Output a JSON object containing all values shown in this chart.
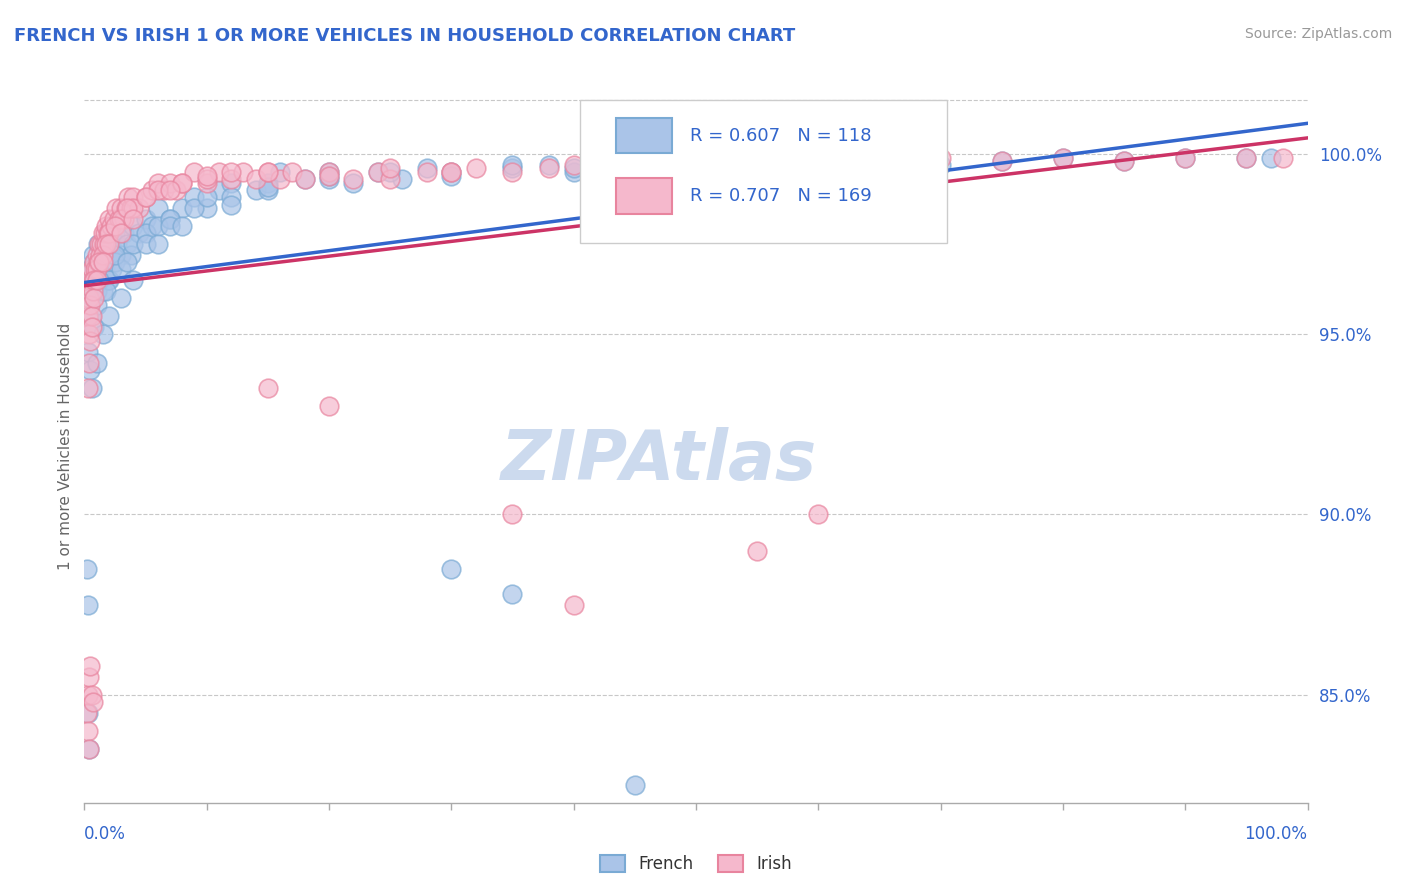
{
  "title": "FRENCH VS IRISH 1 OR MORE VEHICLES IN HOUSEHOLD CORRELATION CHART",
  "source_text": "Source: ZipAtlas.com",
  "ylabel": "1 or more Vehicles in Household",
  "ytick_values": [
    85.0,
    90.0,
    95.0,
    100.0
  ],
  "xmin": 0.0,
  "xmax": 100.0,
  "ymin": 82.0,
  "ymax": 101.8,
  "french_R": 0.607,
  "french_N": 118,
  "irish_R": 0.707,
  "irish_N": 169,
  "french_color": "#aac4e8",
  "french_edge": "#7aaad4",
  "irish_color": "#f5b8cc",
  "irish_edge": "#e8849e",
  "french_line_color": "#3366cc",
  "irish_line_color": "#cc3366",
  "title_color": "#3366cc",
  "ytick_color": "#3366cc",
  "watermark_color": "#ccdaee",
  "background_color": "#ffffff",
  "french_points": [
    [
      0.5,
      96.8
    ],
    [
      0.7,
      97.2
    ],
    [
      0.8,
      97.0
    ],
    [
      0.9,
      96.5
    ],
    [
      1.0,
      96.2
    ],
    [
      1.1,
      97.5
    ],
    [
      1.2,
      96.8
    ],
    [
      1.3,
      97.0
    ],
    [
      1.4,
      96.5
    ],
    [
      1.5,
      97.2
    ],
    [
      1.6,
      97.0
    ],
    [
      1.7,
      96.8
    ],
    [
      1.8,
      97.5
    ],
    [
      1.9,
      96.5
    ],
    [
      2.0,
      97.8
    ],
    [
      2.1,
      97.2
    ],
    [
      2.2,
      97.5
    ],
    [
      2.3,
      96.8
    ],
    [
      2.5,
      97.8
    ],
    [
      2.7,
      97.5
    ],
    [
      3.0,
      97.2
    ],
    [
      3.2,
      97.8
    ],
    [
      3.5,
      97.5
    ],
    [
      3.8,
      97.2
    ],
    [
      4.0,
      98.0
    ],
    [
      4.5,
      97.8
    ],
    [
      5.0,
      98.2
    ],
    [
      5.5,
      98.0
    ],
    [
      6.0,
      98.5
    ],
    [
      7.0,
      98.2
    ],
    [
      8.0,
      98.5
    ],
    [
      9.0,
      98.8
    ],
    [
      10.0,
      98.5
    ],
    [
      11.0,
      99.0
    ],
    [
      12.0,
      99.2
    ],
    [
      14.0,
      99.0
    ],
    [
      15.0,
      99.2
    ],
    [
      16.0,
      99.5
    ],
    [
      18.0,
      99.3
    ],
    [
      20.0,
      99.5
    ],
    [
      22.0,
      99.2
    ],
    [
      24.0,
      99.5
    ],
    [
      26.0,
      99.3
    ],
    [
      28.0,
      99.6
    ],
    [
      30.0,
      99.5
    ],
    [
      35.0,
      99.6
    ],
    [
      38.0,
      99.7
    ],
    [
      40.0,
      99.5
    ],
    [
      42.0,
      99.8
    ],
    [
      45.0,
      99.6
    ],
    [
      48.0,
      99.7
    ],
    [
      50.0,
      99.8
    ],
    [
      55.0,
      99.7
    ],
    [
      60.0,
      99.8
    ],
    [
      65.0,
      99.8
    ],
    [
      70.0,
      99.7
    ],
    [
      75.0,
      99.8
    ],
    [
      80.0,
      99.9
    ],
    [
      85.0,
      99.8
    ],
    [
      90.0,
      99.9
    ],
    [
      95.0,
      99.9
    ],
    [
      97.0,
      99.9
    ],
    [
      0.3,
      94.5
    ],
    [
      0.4,
      95.5
    ],
    [
      0.6,
      96.0
    ],
    [
      1.0,
      95.8
    ],
    [
      1.5,
      96.2
    ],
    [
      2.0,
      96.5
    ],
    [
      2.5,
      97.0
    ],
    [
      3.0,
      96.8
    ],
    [
      4.0,
      97.5
    ],
    [
      5.0,
      97.8
    ],
    [
      6.0,
      98.0
    ],
    [
      7.0,
      98.2
    ],
    [
      9.0,
      98.5
    ],
    [
      12.0,
      98.8
    ],
    [
      15.0,
      99.0
    ],
    [
      20.0,
      99.3
    ],
    [
      25.0,
      99.5
    ],
    [
      30.0,
      99.4
    ],
    [
      35.0,
      99.7
    ],
    [
      40.0,
      99.6
    ],
    [
      0.8,
      95.2
    ],
    [
      1.2,
      96.5
    ],
    [
      1.8,
      96.2
    ],
    [
      2.5,
      97.2
    ],
    [
      3.5,
      97.0
    ],
    [
      5.0,
      97.5
    ],
    [
      7.0,
      98.0
    ],
    [
      10.0,
      98.8
    ],
    [
      15.0,
      99.1
    ],
    [
      20.0,
      99.4
    ],
    [
      0.5,
      94.0
    ],
    [
      0.6,
      93.5
    ],
    [
      1.0,
      94.2
    ],
    [
      1.5,
      95.0
    ],
    [
      2.0,
      95.5
    ],
    [
      3.0,
      96.0
    ],
    [
      4.0,
      96.5
    ],
    [
      6.0,
      97.5
    ],
    [
      8.0,
      98.0
    ],
    [
      12.0,
      98.6
    ],
    [
      0.2,
      88.5
    ],
    [
      0.3,
      87.5
    ],
    [
      0.3,
      84.5
    ],
    [
      0.4,
      83.5
    ],
    [
      30.0,
      88.5
    ],
    [
      35.0,
      87.8
    ],
    [
      45.0,
      82.5
    ]
  ],
  "irish_points": [
    [
      0.3,
      95.5
    ],
    [
      0.4,
      96.0
    ],
    [
      0.5,
      96.5
    ],
    [
      0.6,
      96.8
    ],
    [
      0.7,
      96.5
    ],
    [
      0.8,
      97.0
    ],
    [
      0.9,
      96.8
    ],
    [
      1.0,
      97.2
    ],
    [
      1.1,
      97.0
    ],
    [
      1.2,
      97.5
    ],
    [
      1.3,
      97.2
    ],
    [
      1.4,
      97.5
    ],
    [
      1.5,
      97.8
    ],
    [
      1.6,
      97.5
    ],
    [
      1.7,
      97.8
    ],
    [
      1.8,
      98.0
    ],
    [
      1.9,
      97.8
    ],
    [
      2.0,
      98.2
    ],
    [
      2.2,
      98.0
    ],
    [
      2.4,
      98.2
    ],
    [
      2.6,
      98.5
    ],
    [
      2.8,
      98.2
    ],
    [
      3.0,
      98.5
    ],
    [
      3.2,
      98.2
    ],
    [
      3.4,
      98.5
    ],
    [
      3.6,
      98.8
    ],
    [
      3.8,
      98.5
    ],
    [
      4.0,
      98.8
    ],
    [
      4.5,
      98.5
    ],
    [
      5.0,
      98.8
    ],
    [
      5.5,
      99.0
    ],
    [
      6.0,
      99.2
    ],
    [
      6.5,
      99.0
    ],
    [
      7.0,
      99.2
    ],
    [
      7.5,
      99.0
    ],
    [
      8.0,
      99.2
    ],
    [
      9.0,
      99.5
    ],
    [
      10.0,
      99.2
    ],
    [
      11.0,
      99.5
    ],
    [
      12.0,
      99.3
    ],
    [
      13.0,
      99.5
    ],
    [
      14.0,
      99.3
    ],
    [
      15.0,
      99.5
    ],
    [
      16.0,
      99.3
    ],
    [
      17.0,
      99.5
    ],
    [
      18.0,
      99.3
    ],
    [
      20.0,
      99.5
    ],
    [
      22.0,
      99.3
    ],
    [
      24.0,
      99.5
    ],
    [
      25.0,
      99.3
    ],
    [
      28.0,
      99.5
    ],
    [
      30.0,
      99.5
    ],
    [
      32.0,
      99.6
    ],
    [
      35.0,
      99.5
    ],
    [
      38.0,
      99.6
    ],
    [
      40.0,
      99.7
    ],
    [
      42.0,
      99.6
    ],
    [
      45.0,
      99.7
    ],
    [
      48.0,
      99.7
    ],
    [
      50.0,
      99.8
    ],
    [
      55.0,
      99.7
    ],
    [
      60.0,
      99.8
    ],
    [
      65.0,
      99.8
    ],
    [
      70.0,
      99.9
    ],
    [
      75.0,
      99.8
    ],
    [
      80.0,
      99.9
    ],
    [
      85.0,
      99.8
    ],
    [
      90.0,
      99.9
    ],
    [
      95.0,
      99.9
    ],
    [
      98.0,
      99.9
    ],
    [
      0.4,
      95.0
    ],
    [
      0.5,
      95.8
    ],
    [
      0.7,
      96.2
    ],
    [
      1.0,
      96.8
    ],
    [
      1.5,
      97.2
    ],
    [
      2.0,
      97.8
    ],
    [
      3.0,
      98.2
    ],
    [
      4.0,
      98.5
    ],
    [
      6.0,
      99.0
    ],
    [
      8.0,
      99.2
    ],
    [
      10.0,
      99.3
    ],
    [
      15.0,
      99.5
    ],
    [
      20.0,
      99.4
    ],
    [
      25.0,
      99.6
    ],
    [
      30.0,
      99.5
    ],
    [
      0.6,
      95.5
    ],
    [
      0.8,
      96.5
    ],
    [
      1.2,
      97.0
    ],
    [
      1.8,
      97.5
    ],
    [
      2.5,
      98.0
    ],
    [
      3.5,
      98.5
    ],
    [
      5.0,
      98.8
    ],
    [
      7.0,
      99.0
    ],
    [
      10.0,
      99.4
    ],
    [
      12.0,
      99.5
    ],
    [
      0.3,
      93.5
    ],
    [
      0.4,
      94.2
    ],
    [
      0.5,
      94.8
    ],
    [
      0.6,
      95.2
    ],
    [
      0.8,
      96.0
    ],
    [
      1.0,
      96.5
    ],
    [
      1.5,
      97.0
    ],
    [
      2.0,
      97.5
    ],
    [
      3.0,
      97.8
    ],
    [
      4.0,
      98.2
    ],
    [
      0.2,
      84.5
    ],
    [
      0.3,
      85.0
    ],
    [
      0.3,
      84.0
    ],
    [
      0.4,
      85.5
    ],
    [
      0.4,
      83.5
    ],
    [
      0.5,
      85.8
    ],
    [
      0.6,
      85.0
    ],
    [
      0.7,
      84.8
    ],
    [
      15.0,
      93.5
    ],
    [
      20.0,
      93.0
    ],
    [
      35.0,
      90.0
    ],
    [
      40.0,
      87.5
    ],
    [
      55.0,
      89.0
    ],
    [
      60.0,
      90.0
    ]
  ]
}
